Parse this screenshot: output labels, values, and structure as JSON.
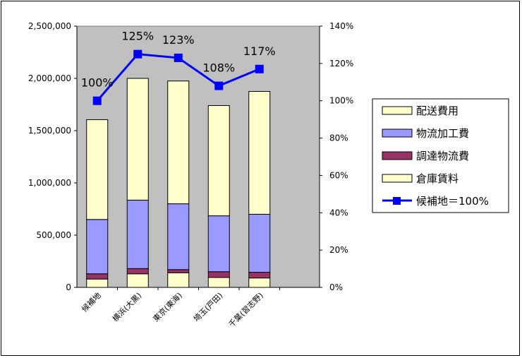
{
  "chart_data": {
    "type": "bar",
    "stacked": true,
    "categories": [
      "候補地",
      "横浜(大黒)",
      "東京(東海)",
      "埼玉(戸田)",
      "千葉(習志野)"
    ],
    "series": [
      {
        "name": "倉庫賃料",
        "color": "#ffffcc",
        "values": [
          80000,
          130000,
          140000,
          95000,
          90000
        ]
      },
      {
        "name": "調達物流費",
        "color": "#993366",
        "values": [
          50000,
          50000,
          30000,
          55000,
          55000
        ]
      },
      {
        "name": "物流加工費",
        "color": "#9999ff",
        "values": [
          520000,
          655000,
          630000,
          535000,
          555000
        ]
      },
      {
        "name": "配送費用",
        "color": "#ffffcc",
        "values": [
          955000,
          1165000,
          1175000,
          1055000,
          1175000
        ]
      }
    ],
    "line_series": {
      "name": "候補地＝100%",
      "color": "#0000ff",
      "values": [
        100,
        125,
        123,
        108,
        117
      ],
      "labels": [
        "100%",
        "125%",
        "123%",
        "108%",
        "117%"
      ]
    },
    "legend": [
      "配送費用",
      "物流加工費",
      "調達物流費",
      "倉庫賃料",
      "候補地＝100%"
    ],
    "y_ticks": [
      "0",
      "500,000",
      "1,000,000",
      "1,500,000",
      "2,000,000",
      "2,500,000"
    ],
    "y2_ticks": [
      "0%",
      "20%",
      "40%",
      "60%",
      "80%",
      "100%",
      "120%",
      "140%"
    ],
    "ylim": [
      0,
      2500000
    ],
    "y2lim": [
      0,
      140
    ],
    "plot_background": "#c0c0c0",
    "legend_position": "right"
  }
}
